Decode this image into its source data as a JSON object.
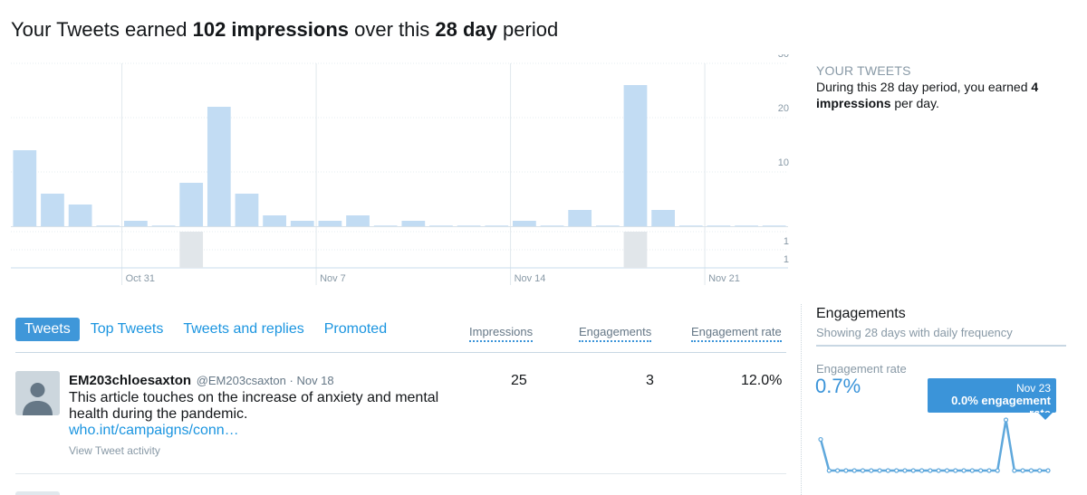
{
  "headline": {
    "prefix": "Your Tweets earned ",
    "impressions": "102 impressions",
    "middle": " over this ",
    "period": "28 day",
    "suffix": " period"
  },
  "summary": {
    "title": "YOUR TWEETS",
    "text_prefix": "During this 28 day period, you earned ",
    "text_bold": "4 impressions",
    "text_suffix": " per day."
  },
  "tabs": [
    {
      "label": "Tweets",
      "active": true
    },
    {
      "label": "Top Tweets",
      "active": false
    },
    {
      "label": "Tweets and replies",
      "active": false
    },
    {
      "label": "Promoted",
      "active": false
    }
  ],
  "columns": {
    "impressions": "Impressions",
    "engagements": "Engagements",
    "engagement_rate": "Engagement rate"
  },
  "tweet": {
    "name": "EM203chloesaxton",
    "handle": "@EM203csaxton",
    "date": "· Nov 18",
    "text": "This article touches on the increase of anxiety and mental health during the pandemic.",
    "link": "who.int/campaigns/conn…",
    "activity": "View Tweet activity",
    "impressions": "25",
    "engagements": "3",
    "engagement_rate": "12.0%"
  },
  "engagements_panel": {
    "title": "Engagements",
    "subtitle": "Showing 28 days with daily frequency",
    "rate_label": "Engagement rate",
    "rate_value": "0.7%",
    "tooltip_date": "Nov 23",
    "tooltip_value": "0.0% engagement rate"
  },
  "colors": {
    "bar": "#c2dcf3",
    "bar_gray": "#e1e6ea",
    "accent": "#3b94d9",
    "spark_line": "#5fa8dc"
  },
  "chart_data": [
    {
      "type": "bar",
      "title": "",
      "x_ticks": [
        "Oct 31",
        "Nov 7",
        "Nov 14",
        "Nov 21"
      ],
      "y_ticks": [
        10,
        20,
        30
      ],
      "ylim": [
        0,
        30
      ],
      "grid": true,
      "values": [
        14,
        6,
        4,
        0,
        1,
        0,
        8,
        22,
        6,
        2,
        1,
        1,
        2,
        0,
        1,
        0,
        0,
        0,
        1,
        0,
        3,
        0,
        26,
        3,
        0,
        0,
        0,
        0
      ],
      "secondary_ticks": [
        "1",
        "1"
      ],
      "secondary_values": [
        0,
        0,
        0,
        0,
        0,
        0,
        1,
        0,
        0,
        0,
        0,
        0,
        0,
        0,
        0,
        0,
        0,
        0,
        0,
        0,
        0,
        0,
        1,
        0,
        0,
        0,
        0,
        0
      ]
    },
    {
      "type": "line",
      "title": "Engagement rate",
      "y": [
        0.8,
        0,
        0,
        0,
        0,
        0,
        0,
        0,
        0,
        0,
        0,
        0,
        0,
        0,
        0,
        0,
        0,
        0,
        0,
        0,
        0,
        0,
        1.3,
        0,
        0,
        0,
        0,
        0
      ]
    }
  ]
}
